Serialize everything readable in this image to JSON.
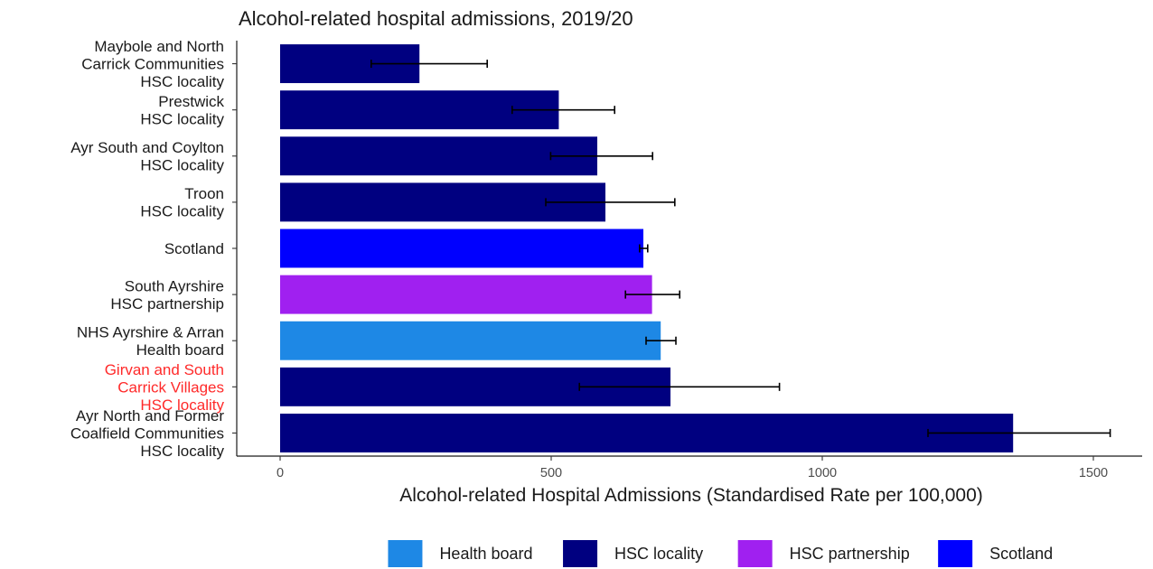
{
  "chart_data": {
    "type": "bar",
    "orientation": "horizontal",
    "title": "Alcohol-related hospital admissions, 2019/20",
    "xlabel": "Alcohol-related Hospital Admissions (Standardised Rate per 100,000)",
    "ylabel": "",
    "xlim": [
      -80,
      1590
    ],
    "xticks": [
      0,
      500,
      1000,
      1500
    ],
    "xtick_labels": [
      "0",
      "500",
      "1000",
      "1500"
    ],
    "grid": false,
    "legend_position": "bottom",
    "colors": {
      "Health board": "#1e88e5",
      "HSC locality": "#000080",
      "HSC partnership": "#a020f0",
      "Scotland": "#0000ff"
    },
    "legend": [
      "Health board",
      "HSC locality",
      "HSC partnership",
      "Scotland"
    ],
    "bars": [
      {
        "label": [
          "Maybole and North",
          "Carrick Communities",
          "HSC locality"
        ],
        "value": 257,
        "lower": 168,
        "upper": 382,
        "group": "HSC locality",
        "highlight": false
      },
      {
        "label": [
          "Prestwick",
          "HSC locality"
        ],
        "value": 514,
        "lower": 428,
        "upper": 617,
        "group": "HSC locality",
        "highlight": false
      },
      {
        "label": [
          "Ayr South and Coylton",
          "HSC locality"
        ],
        "value": 585,
        "lower": 499,
        "upper": 687,
        "group": "HSC locality",
        "highlight": false
      },
      {
        "label": [
          "Troon",
          "HSC locality"
        ],
        "value": 600,
        "lower": 490,
        "upper": 728,
        "group": "HSC locality",
        "highlight": false
      },
      {
        "label": [
          "Scotland"
        ],
        "value": 670,
        "lower": 663,
        "upper": 678,
        "group": "Scotland",
        "highlight": false
      },
      {
        "label": [
          "South Ayrshire",
          "HSC partnership"
        ],
        "value": 686,
        "lower": 637,
        "upper": 737,
        "group": "HSC partnership",
        "highlight": false
      },
      {
        "label": [
          "NHS Ayrshire & Arran",
          "Health board"
        ],
        "value": 702,
        "lower": 675,
        "upper": 730,
        "group": "Health board",
        "highlight": false
      },
      {
        "label": [
          "Girvan and South",
          "Carrick Villages",
          "HSC locality"
        ],
        "value": 720,
        "lower": 552,
        "upper": 921,
        "group": "HSC locality",
        "highlight": true
      },
      {
        "label": [
          "Ayr North and Former",
          "Coalfield Communities",
          "HSC locality"
        ],
        "value": 1352,
        "lower": 1195,
        "upper": 1531,
        "group": "HSC locality",
        "highlight": false
      }
    ]
  }
}
